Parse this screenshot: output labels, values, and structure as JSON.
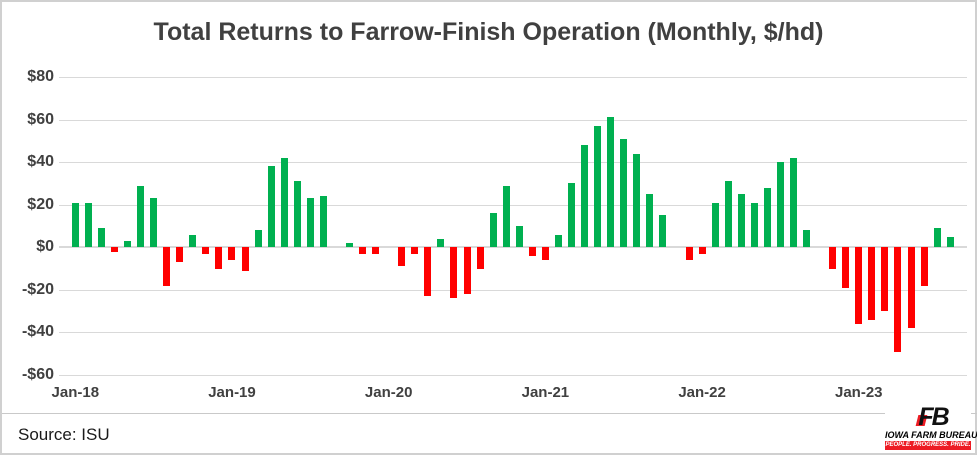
{
  "title": "Total Returns to Farrow-Finish Operation (Monthly, $/hd)",
  "source_note": "Source: ISU",
  "logo": {
    "mark": "FB",
    "name": "IOWA FARM BUREAU",
    "tagline": "PEOPLE. PROGRESS. PRIDE."
  },
  "colors": {
    "positive_bar": "#00b050",
    "negative_bar": "#ff0000",
    "gridline": "#d9d9d9",
    "text": "#404040",
    "logo_red": "#ed1c24"
  },
  "chart_data": {
    "type": "bar",
    "title": "Total Returns to Farrow-Finish Operation (Monthly, $/hd)",
    "xlabel": "",
    "ylabel": "$/hd",
    "ylim": [
      -60,
      80
    ],
    "grid": true,
    "y_ticks": [
      80,
      60,
      40,
      20,
      0,
      -20,
      -40,
      -60
    ],
    "y_tick_labels": [
      "$80",
      "$60",
      "$40",
      "$20",
      "$0",
      "-$20",
      "-$40",
      "-$60"
    ],
    "x_tick_labels": [
      "Jan-18",
      "Jan-19",
      "Jan-20",
      "Jan-21",
      "Jan-22",
      "Jan-23"
    ],
    "x": [
      "Jan-18",
      "Feb-18",
      "Mar-18",
      "Apr-18",
      "May-18",
      "Jun-18",
      "Jul-18",
      "Aug-18",
      "Sep-18",
      "Oct-18",
      "Nov-18",
      "Dec-18",
      "Jan-19",
      "Feb-19",
      "Mar-19",
      "Apr-19",
      "May-19",
      "Jun-19",
      "Jul-19",
      "Aug-19",
      "Sep-19",
      "Oct-19",
      "Nov-19",
      "Dec-19",
      "Jan-20",
      "Feb-20",
      "Mar-20",
      "Apr-20",
      "May-20",
      "Jun-20",
      "Jul-20",
      "Aug-20",
      "Sep-20",
      "Oct-20",
      "Nov-20",
      "Dec-20",
      "Jan-21",
      "Feb-21",
      "Mar-21",
      "Apr-21",
      "May-21",
      "Jun-21",
      "Jul-21",
      "Aug-21",
      "Sep-21",
      "Oct-21",
      "Nov-21",
      "Dec-21",
      "Jan-22",
      "Feb-22",
      "Mar-22",
      "Apr-22",
      "May-22",
      "Jun-22",
      "Jul-22",
      "Aug-22",
      "Sep-22",
      "Oct-22",
      "Nov-22",
      "Dec-22",
      "Jan-23",
      "Feb-23",
      "Mar-23",
      "Apr-23",
      "May-23",
      "Jun-23",
      "Jul-23",
      "Aug-23"
    ],
    "values": [
      21,
      21,
      9,
      -2,
      3,
      29,
      23,
      -18,
      -7,
      6,
      -3,
      -10,
      -6,
      -11,
      8,
      38,
      42,
      31,
      23,
      24,
      0,
      2,
      -3,
      -3,
      0,
      -9,
      -3,
      -23,
      4,
      -24,
      -22,
      -10,
      16,
      29,
      10,
      -4,
      -6,
      6,
      30,
      48,
      57,
      61,
      51,
      44,
      25,
      15,
      0,
      -6,
      -3,
      21,
      31,
      25,
      21,
      28,
      40,
      42,
      8,
      0,
      -10,
      -19,
      -36,
      -34,
      -30,
      -49,
      -38,
      -18,
      9,
      5
    ],
    "legend": "none",
    "bar_color_rule": "green when value >= 0, red when value < 0"
  }
}
